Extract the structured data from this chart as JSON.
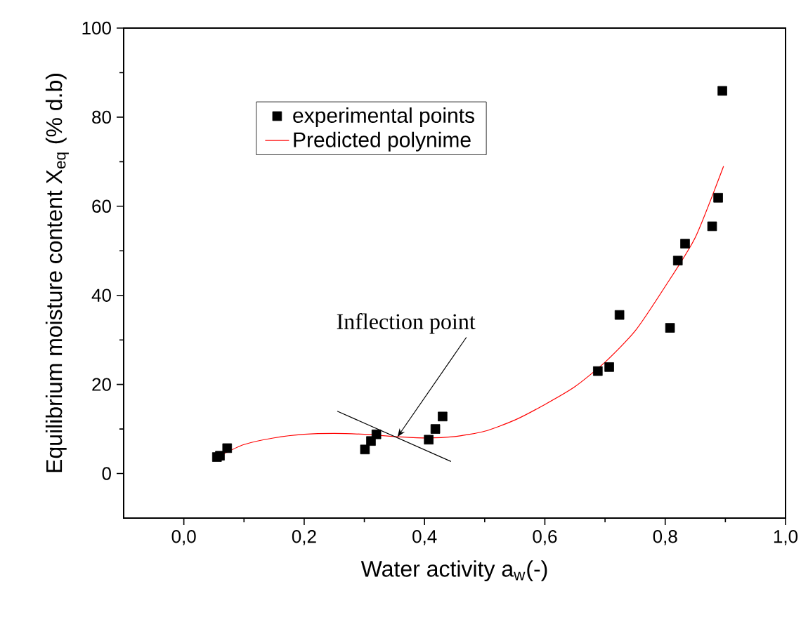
{
  "chart_data": {
    "type": "scatter",
    "xlabel": "Water activity a$_{w}$(-)",
    "ylabel": "Equilibrium moisture content X$_{eq}$ (% d.b)",
    "xlim": [
      -0.1,
      1.0
    ],
    "ylim": [
      -10,
      100
    ],
    "xticks": [
      {
        "value": 0.0,
        "label": "0,0"
      },
      {
        "value": 0.2,
        "label": "0,2"
      },
      {
        "value": 0.4,
        "label": "0,4"
      },
      {
        "value": 0.6,
        "label": "0,6"
      },
      {
        "value": 0.8,
        "label": "0,8"
      },
      {
        "value": 1.0,
        "label": "1,0"
      }
    ],
    "yticks": [
      0,
      20,
      40,
      60,
      80,
      100
    ],
    "legend": "top left",
    "series": [
      {
        "name": "experimental points",
        "marker": "square",
        "color": "#000000",
        "x": [
          0.055,
          0.06,
          0.072,
          0.301,
          0.311,
          0.32,
          0.407,
          0.418,
          0.43,
          0.688,
          0.707,
          0.724,
          0.808,
          0.821,
          0.833,
          0.878,
          0.888,
          0.895
        ],
        "values": [
          3.7,
          4.0,
          5.7,
          5.4,
          7.3,
          8.8,
          7.6,
          10.0,
          12.8,
          23.0,
          23.9,
          35.6,
          32.7,
          47.8,
          51.6,
          55.5,
          61.9,
          85.9
        ]
      },
      {
        "name": "Predicted polynime",
        "type": "line",
        "marker": "none",
        "line_style": "solid",
        "color": "#ff0000",
        "x": [
          0.06,
          0.1,
          0.15,
          0.2,
          0.25,
          0.3,
          0.35,
          0.4,
          0.45,
          0.5,
          0.55,
          0.6,
          0.65,
          0.7,
          0.75,
          0.8,
          0.85,
          0.897
        ],
        "values": [
          4.0,
          6.5,
          8.0,
          8.8,
          9.0,
          8.8,
          8.3,
          8.0,
          8.3,
          9.5,
          12.0,
          15.5,
          19.5,
          25.0,
          32.0,
          42.0,
          53.0,
          69.0
        ]
      },
      {
        "type": "line",
        "marker": "none",
        "line_style": "solid",
        "color": "#000000",
        "x": [
          0.255,
          0.444
        ],
        "values": [
          14.0,
          2.7
        ]
      }
    ],
    "annotations": [
      {
        "text": "Inflection point",
        "x": 0.355,
        "y": 8.2
      }
    ]
  }
}
